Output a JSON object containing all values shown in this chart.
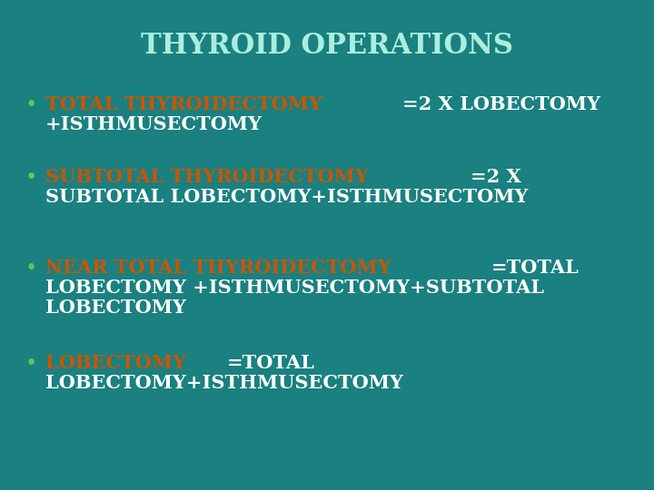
{
  "title": "THYROID OPERATIONS",
  "title_color": "#AAEEDD",
  "title_fontsize": 22,
  "background_color": "#1A8080",
  "bullet_color": "#55CC55",
  "orange_color": "#CC5500",
  "white_color": "#FFFFFF",
  "bullet_items": [
    {
      "orange_part": "TOTAL THYROIDECTOMY",
      "white_part": "=2 X LOBECTOMY",
      "wrap_lines": [
        "+ISTHMUSECTOMY"
      ]
    },
    {
      "orange_part": "SUBTOTAL THYROIDECTOMY ",
      "white_part": "=2 X",
      "wrap_lines": [
        "SUBTOTAL LOBECTOMY+ISTHMUSECTOMY"
      ]
    },
    {
      "orange_part": "NEAR TOTAL THYROIDECTOMY",
      "white_part": "=TOTAL",
      "wrap_lines": [
        "LOBECTOMY +ISTHMUSECTOMY+SUBTOTAL",
        "LOBECTOMY"
      ]
    },
    {
      "orange_part": "LOBECTOMY",
      "white_part": "=TOTAL",
      "wrap_lines": [
        "LOBECTOMY+ISTHMUSECTOMY"
      ]
    }
  ],
  "figsize": [
    7.2,
    5.4
  ],
  "dpi": 100
}
